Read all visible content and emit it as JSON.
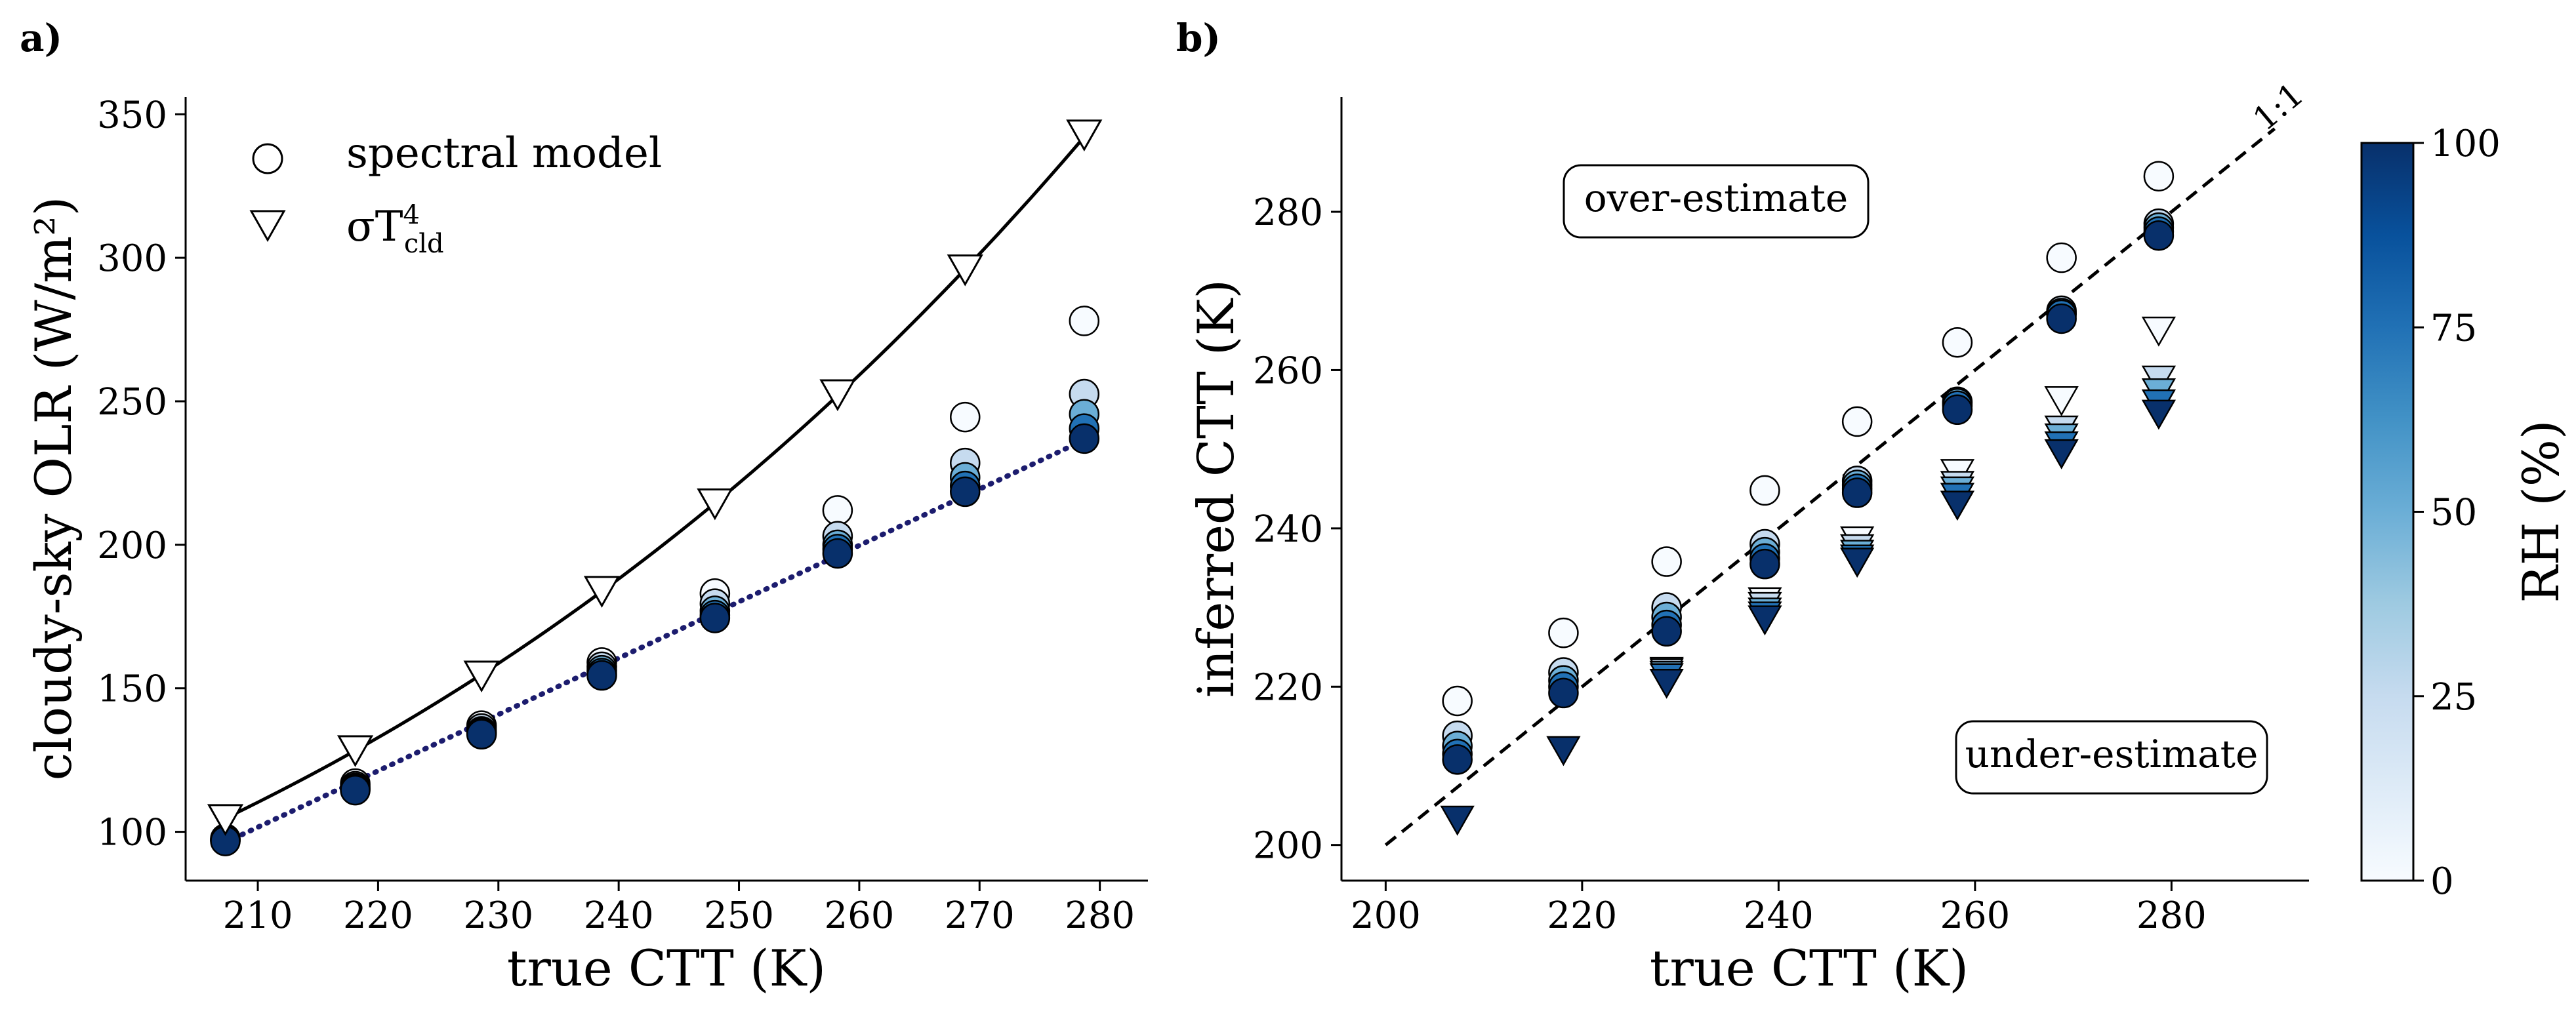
{
  "colors": {
    "rh_low": "#f7fbff",
    "rh_high": "#08306b",
    "fit_line": "#1c1c6e",
    "marker_edge": "#000000"
  },
  "chart_data": [
    {
      "panel_label": "a)",
      "type": "scatter",
      "xlabel": "true CTT (K)",
      "ylabel": "cloudy-sky OLR (W/m²)",
      "xlim": [
        204,
        284
      ],
      "ylim": [
        83,
        356
      ],
      "xticks": [
        210,
        220,
        230,
        240,
        250,
        260,
        270,
        280
      ],
      "yticks": [
        100,
        150,
        200,
        250,
        300,
        350
      ],
      "legend": {
        "position": "top-left",
        "entries": [
          {
            "marker": "circle",
            "label": "spectral model"
          },
          {
            "marker": "triangle-down",
            "label_base": "σT",
            "label_sub": "cld",
            "label_sup": "4"
          }
        ]
      },
      "rh_levels": [
        0,
        25,
        50,
        75,
        100
      ],
      "x": [
        207.3,
        218.1,
        228.6,
        238.6,
        248.0,
        258.2,
        268.8,
        278.7
      ],
      "series": [
        {
          "marker": "circle",
          "rh_values": [
            [
              97.6,
              97.4,
              97.2,
              97.0,
              96.8
            ],
            [
              116.8,
              115.9,
              115.3,
              114.8,
              114.5
            ],
            [
              137.0,
              136.0,
              135.0,
              134.5,
              134.0
            ],
            [
              159.0,
              157.5,
              156.3,
              155.3,
              154.5
            ],
            [
              183.0,
              179.5,
              177.0,
              175.5,
              174.5
            ],
            [
              212.0,
              203.0,
              200.0,
              198.5,
              197.0
            ],
            [
              244.5,
              228.5,
              223.5,
              220.5,
              218.5
            ],
            [
              278.0,
              252.5,
              245.5,
              240.5,
              237.0
            ]
          ]
        },
        {
          "marker": "triangle-down",
          "name": "σT⁴cld",
          "values": [
            104.5,
            128.5,
            154.5,
            184.0,
            214.5,
            252.5,
            296.0,
            343.0
          ]
        }
      ],
      "lines": [
        {
          "style": "solid",
          "color": "#000000",
          "formula": "sigma_T4"
        },
        {
          "style": "dotted",
          "color": "#1c1c6e",
          "x": [
            207.3,
            278.7
          ],
          "y": [
            96.3,
            236.5
          ]
        }
      ]
    },
    {
      "panel_label": "b)",
      "type": "scatter",
      "xlabel": "true CTT (K)",
      "ylabel": "inferred CTT (K)",
      "xlim": [
        195.5,
        294
      ],
      "ylim": [
        195.5,
        294.5
      ],
      "xticks": [
        200,
        220,
        240,
        260,
        280
      ],
      "yticks": [
        200,
        220,
        240,
        260,
        280
      ],
      "one_to_one_label": "1:1",
      "annotations": [
        "over-estimate",
        "under-estimate"
      ],
      "rh_levels": [
        0,
        25,
        50,
        75,
        100
      ],
      "x": [
        207.3,
        218.1,
        228.6,
        238.6,
        248.0,
        258.2,
        268.8,
        278.7
      ],
      "series": [
        {
          "marker": "circle",
          "rh_values": [
            [
              218.2,
              213.8,
              212.5,
              211.5,
              210.8
            ],
            [
              226.8,
              221.8,
              220.8,
              220.0,
              219.2
            ],
            [
              235.8,
              230.0,
              228.8,
              227.8,
              227.0
            ],
            [
              244.8,
              238.0,
              237.0,
              236.2,
              235.5
            ],
            [
              253.5,
              246.0,
              245.5,
              245.0,
              244.5
            ],
            [
              263.5,
              256.0,
              255.8,
              255.5,
              255.0
            ],
            [
              274.2,
              267.5,
              267.2,
              267.0,
              266.5
            ],
            [
              284.5,
              278.5,
              278.0,
              277.5,
              277.0
            ]
          ]
        },
        {
          "marker": "triangle-down",
          "rh_values": [
            [
              null,
              null,
              null,
              null,
              203.2
            ],
            [
              null,
              null,
              null,
              null,
              212.0
            ],
            [
              222.0,
              221.8,
              221.5,
              221.2,
              220.5
            ],
            [
              230.8,
              230.2,
              229.5,
              229.0,
              228.5
            ],
            [
              238.5,
              237.5,
              236.8,
              236.2,
              235.8
            ],
            [
              247.0,
              245.5,
              244.8,
              244.0,
              243.0
            ],
            [
              256.2,
              252.5,
              251.5,
              250.5,
              249.5
            ],
            [
              265.0,
              258.8,
              257.2,
              255.8,
              254.5
            ]
          ]
        }
      ]
    }
  ],
  "colorbar": {
    "label": "RH (%)",
    "ticks": [
      0,
      25,
      50,
      75,
      100
    ],
    "range": [
      0,
      100
    ]
  }
}
